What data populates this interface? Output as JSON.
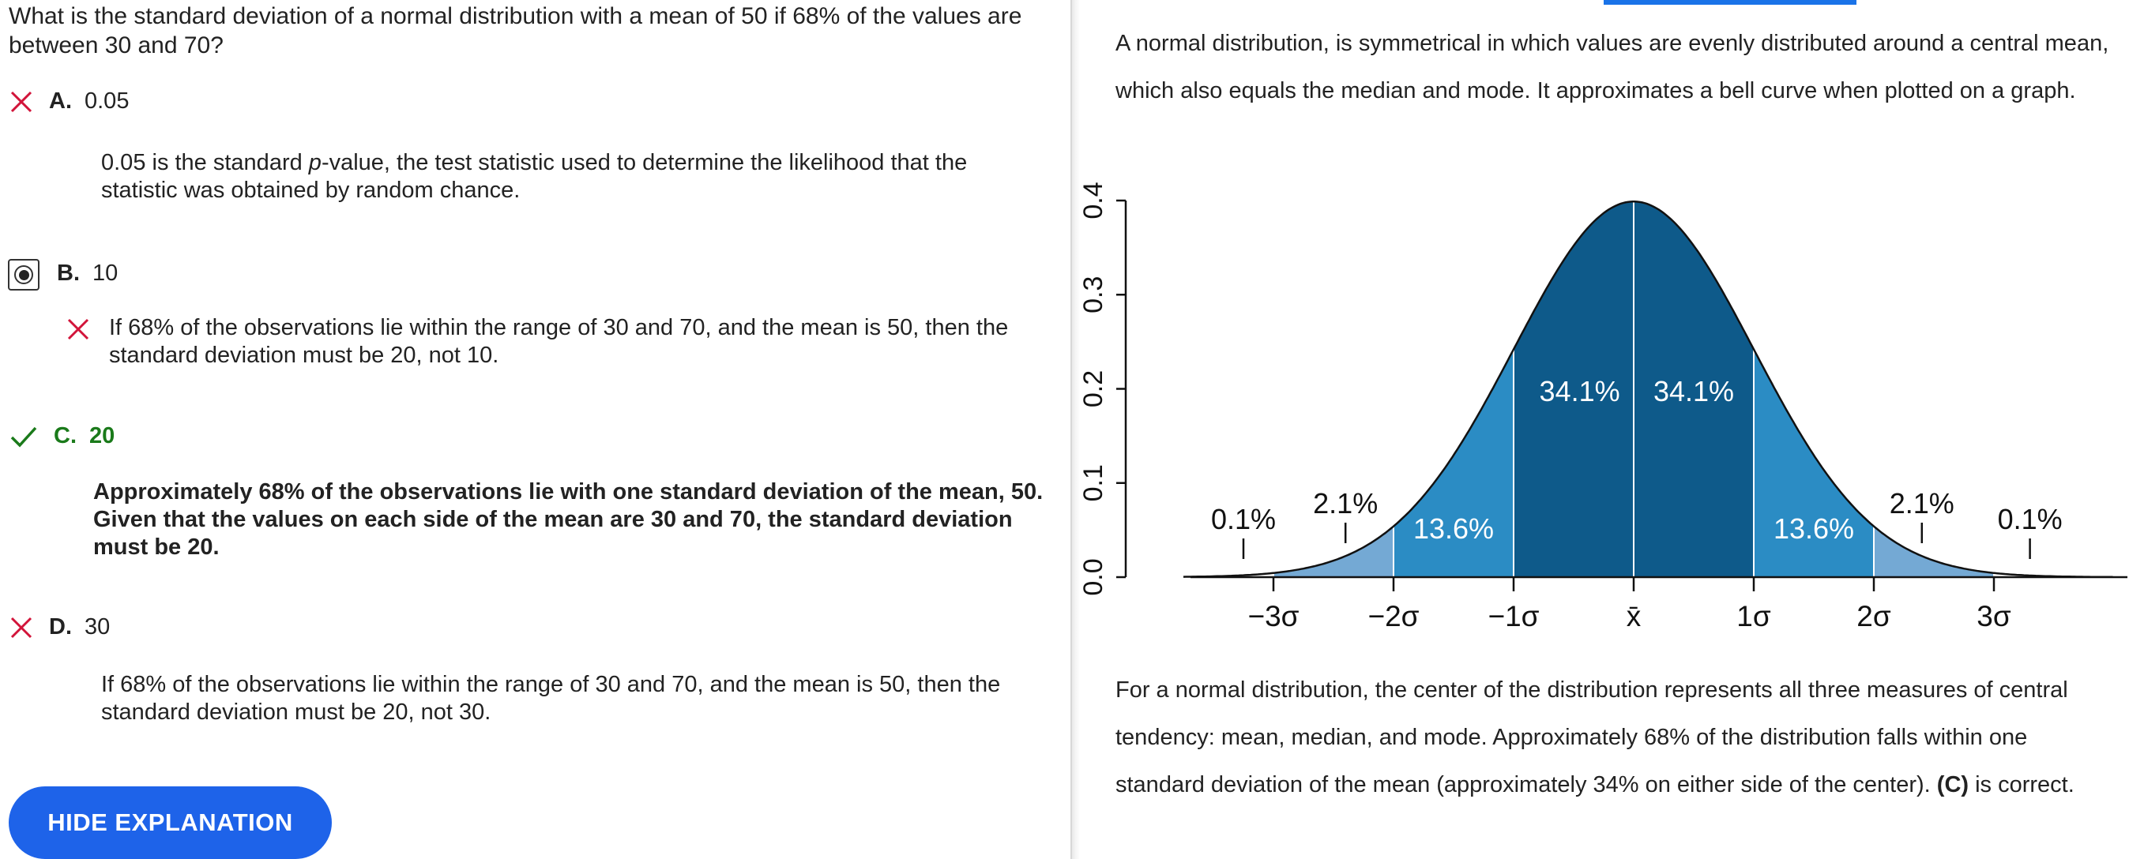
{
  "question": {
    "text": "What is the standard deviation of a normal distribution with a mean of 50 if 68% of the values are between 30 and 70?"
  },
  "options": [
    {
      "letter": "A.",
      "value": "0.05",
      "status": "incorrect",
      "explanation_parts": [
        "0.05 is the standard ",
        "p",
        "-value, the test statistic used to determine the likelihood that the statistic was obtained by random chance."
      ]
    },
    {
      "letter": "B.",
      "value": "10",
      "status": "selected-incorrect",
      "explanation": "If 68% of the observations lie within the range of 30 and 70, and the mean is 50, then the standard deviation must be 20, not 10."
    },
    {
      "letter": "C.",
      "value": "20",
      "status": "correct",
      "explanation": "Approximately 68% of the observations lie with one standard deviation of the mean, 50. Given that the values on each side of the mean are 30 and 70, the standard deviation must be 20."
    },
    {
      "letter": "D.",
      "value": "30",
      "status": "incorrect",
      "explanation": "If 68% of the observations lie within the range of 30 and 70, and the mean is 50, then the standard deviation must be 20, not 30."
    }
  ],
  "hide_button": {
    "label": "HIDE EXPLANATION"
  },
  "explanation_panel": {
    "intro": "A normal distribution, is symmetrical in which values are evenly distributed around a central mean, which also equals the median and mode. It approximates a bell curve when plotted on a graph.",
    "conclusion_main": "For a normal distribution, the center of the distribution represents all three measures of central tendency: mean, median, and mode. Approximately 68% of the distribution falls within one standard deviation of the mean (approximately 34% on either side of the center). ",
    "conclusion_bold": "(C)",
    "conclusion_end": " is correct."
  },
  "colors": {
    "dark": "#0e5a8a",
    "mid": "#2b8cc4",
    "light": "#74a9d4",
    "incorrect": "#d2143a",
    "correct": "#1a7a1a",
    "button": "#1e63e9"
  },
  "chart_data": {
    "type": "area",
    "title": "",
    "xlabel": "",
    "ylabel": "",
    "x_ticks": [
      "−3σ",
      "−2σ",
      "−1σ",
      "x̄",
      "1σ",
      "2σ",
      "3σ"
    ],
    "y_ticks": [
      "0.0",
      "0.1",
      "0.2",
      "0.3",
      "0.4"
    ],
    "xlim": [
      -3.7,
      4.0
    ],
    "ylim": [
      0,
      0.4
    ],
    "regions": [
      {
        "from": -3,
        "to": -2,
        "shade": "light"
      },
      {
        "from": -2,
        "to": -1,
        "shade": "mid"
      },
      {
        "from": -1,
        "to": 0,
        "shade": "dark"
      },
      {
        "from": 0,
        "to": 1,
        "shade": "dark"
      },
      {
        "from": 1,
        "to": 2,
        "shade": "mid"
      },
      {
        "from": 2,
        "to": 3,
        "shade": "light"
      }
    ],
    "percent_labels": [
      "0.1%",
      "2.1%",
      "13.6%",
      "34.1%",
      "34.1%",
      "13.6%",
      "2.1%",
      "0.1%"
    ],
    "percent_positions": [
      -3.25,
      -2.4,
      -1.5,
      -0.45,
      0.5,
      1.5,
      2.4,
      3.3
    ]
  }
}
